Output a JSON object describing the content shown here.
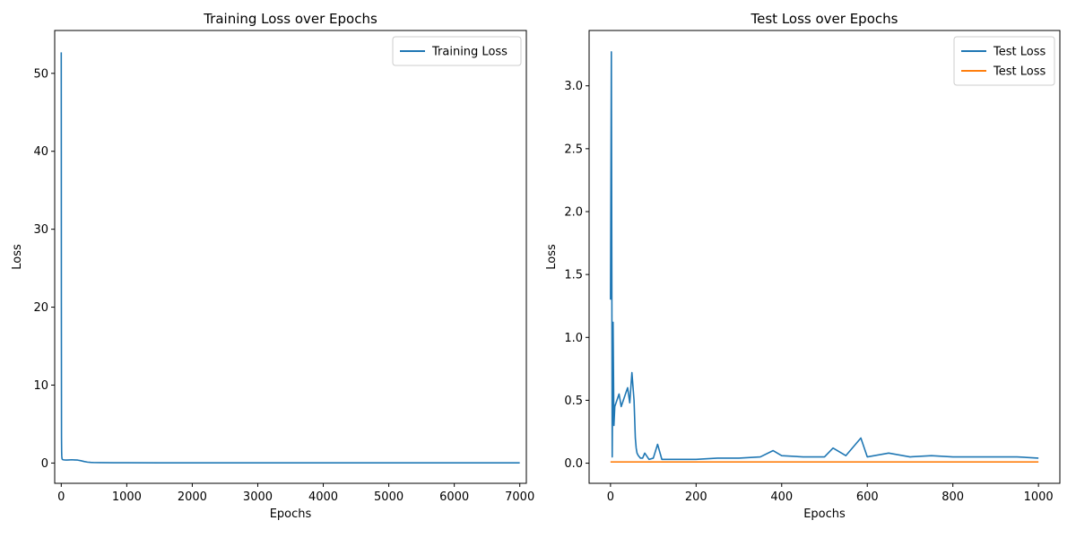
{
  "chart_data": [
    {
      "type": "line",
      "title": "Training Loss over Epochs",
      "xlabel": "Epochs",
      "ylabel": "Loss",
      "xlim": [
        -100,
        7100
      ],
      "ylim": [
        -2.6,
        55.5
      ],
      "xticks": [
        0,
        1000,
        2000,
        3000,
        4000,
        5000,
        6000,
        7000
      ],
      "yticks": [
        0,
        10,
        20,
        30,
        40,
        50
      ],
      "grid": false,
      "legend": "top-right",
      "series": [
        {
          "name": "Training Loss",
          "color": "#1f77b4",
          "x": [
            0,
            1,
            2,
            4,
            6,
            8,
            10,
            12,
            15,
            20,
            30,
            50,
            80,
            120,
            160,
            200,
            250,
            300,
            350,
            400,
            450,
            500,
            600,
            800,
            1000,
            1500,
            2000,
            2500,
            3000,
            3500,
            4000,
            4500,
            5000,
            5500,
            6000,
            6500,
            6999
          ],
          "y": [
            52.7,
            40.0,
            20.0,
            3.3,
            1.5,
            0.9,
            0.7,
            0.55,
            0.5,
            0.45,
            0.42,
            0.4,
            0.38,
            0.4,
            0.42,
            0.4,
            0.38,
            0.3,
            0.2,
            0.12,
            0.08,
            0.06,
            0.05,
            0.04,
            0.04,
            0.03,
            0.03,
            0.03,
            0.03,
            0.03,
            0.03,
            0.03,
            0.03,
            0.03,
            0.03,
            0.03,
            0.03
          ]
        }
      ]
    },
    {
      "type": "line",
      "title": "Test Loss over Epochs",
      "xlabel": "Epochs",
      "ylabel": "Loss",
      "xlim": [
        -50,
        1050
      ],
      "ylim": [
        -0.16,
        3.44
      ],
      "xticks": [
        0,
        200,
        400,
        600,
        800,
        1000
      ],
      "yticks": [
        0.0,
        0.5,
        1.0,
        1.5,
        2.0,
        2.5,
        3.0
      ],
      "grid": false,
      "legend": "top-right",
      "series": [
        {
          "name": "Test Loss",
          "color": "#1f77b4",
          "x": [
            0,
            2,
            4,
            6,
            8,
            10,
            15,
            20,
            25,
            30,
            35,
            40,
            45,
            50,
            55,
            58,
            60,
            62,
            65,
            70,
            75,
            80,
            90,
            100,
            110,
            120,
            150,
            200,
            250,
            300,
            350,
            380,
            400,
            450,
            500,
            520,
            550,
            585,
            600,
            650,
            700,
            750,
            800,
            850,
            900,
            950,
            1000
          ],
          "y": [
            1.3,
            3.27,
            0.05,
            1.12,
            0.3,
            0.45,
            0.5,
            0.55,
            0.45,
            0.5,
            0.55,
            0.6,
            0.48,
            0.72,
            0.5,
            0.2,
            0.12,
            0.08,
            0.06,
            0.04,
            0.04,
            0.08,
            0.03,
            0.04,
            0.15,
            0.03,
            0.03,
            0.03,
            0.04,
            0.04,
            0.05,
            0.1,
            0.06,
            0.05,
            0.05,
            0.12,
            0.06,
            0.2,
            0.05,
            0.08,
            0.05,
            0.06,
            0.05,
            0.05,
            0.05,
            0.05,
            0.04
          ]
        },
        {
          "name": "Test Loss",
          "color": "#ff7f0e",
          "x": [
            0,
            1000
          ],
          "y": [
            0.01,
            0.01
          ]
        }
      ]
    }
  ]
}
